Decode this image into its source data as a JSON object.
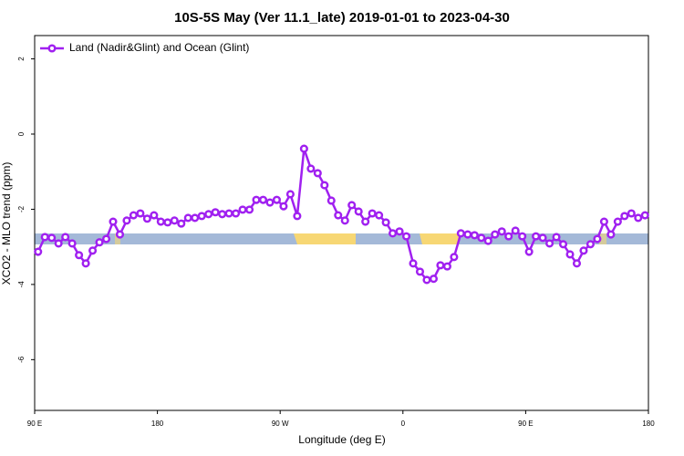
{
  "chart_data": {
    "type": "line",
    "title": "10S-5S May (Ver 11.1_late)   2019-01-01 to 2023-04-30",
    "x_label": "Longitude (deg E)",
    "y_label": "XCO2 - MLO trend (ppm)",
    "xlim": [
      90,
      540
    ],
    "ylim": [
      -7.35,
      2.62
    ],
    "xticks": [
      {
        "value": 90,
        "label": "90 E"
      },
      {
        "value": 180,
        "label": "180"
      },
      {
        "value": 270,
        "label": "90 W"
      },
      {
        "value": 360,
        "label": "0"
      },
      {
        "value": 450,
        "label": "90 E"
      },
      {
        "value": 540,
        "label": "180"
      }
    ],
    "yticks": [
      2,
      0,
      -2,
      -4,
      -6
    ],
    "legend": "top-left",
    "x": [
      92.5,
      97.5,
      102.5,
      107.5,
      112.5,
      117.5,
      122.5,
      127.5,
      132.5,
      137.5,
      142.5,
      147.5,
      152.5,
      157.5,
      162.5,
      167.5,
      172.5,
      177.5,
      182.5,
      187.5,
      192.5,
      197.5,
      202.5,
      207.5,
      212.5,
      217.5,
      222.5,
      227.5,
      232.5,
      237.5,
      242.5,
      247.5,
      252.5,
      257.5,
      262.5,
      267.5,
      272.5,
      277.5,
      282.5,
      287.5,
      292.5,
      297.5,
      302.5,
      307.5,
      312.5,
      317.5,
      322.5,
      327.5,
      332.5,
      337.5,
      342.5,
      347.5,
      352.5,
      357.5,
      362.5,
      367.5,
      372.5,
      377.5,
      382.5,
      387.5,
      392.5,
      397.5,
      402.5,
      407.5,
      412.5,
      417.5,
      422.5,
      427.5,
      432.5,
      437.5,
      442.5,
      447.5,
      452.5,
      457.5,
      462.5,
      467.5,
      472.5,
      477.5,
      482.5,
      487.5,
      492.5,
      497.5,
      502.5,
      507.5,
      512.5,
      517.5,
      522.5,
      527.5,
      532.5,
      537.5
    ],
    "series": [
      {
        "name": "Land (Nadir&Glint) and Ocean (Glint)",
        "color": "#a020f0",
        "values": [
          -3.13,
          -2.74,
          -2.76,
          -2.91,
          -2.74,
          -2.91,
          -3.22,
          -3.44,
          -3.1,
          -2.88,
          -2.79,
          -2.33,
          -2.67,
          -2.3,
          -2.16,
          -2.11,
          -2.25,
          -2.16,
          -2.33,
          -2.35,
          -2.3,
          -2.38,
          -2.23,
          -2.23,
          -2.18,
          -2.13,
          -2.08,
          -2.13,
          -2.11,
          -2.11,
          -2.01,
          -2.01,
          -1.75,
          -1.75,
          -1.82,
          -1.75,
          -1.92,
          -1.6,
          -2.18,
          -0.39,
          -0.92,
          -1.04,
          -1.36,
          -1.77,
          -2.16,
          -2.3,
          -1.89,
          -2.06,
          -2.33,
          -2.11,
          -2.16,
          -2.35,
          -2.64,
          -2.59,
          -2.72,
          -3.44,
          -3.66,
          -3.88,
          -3.85,
          -3.49,
          -3.52,
          -3.27,
          -2.64,
          -2.67,
          -2.69,
          -2.76,
          -2.84,
          -2.67,
          -2.59,
          -2.72,
          -2.57,
          -2.72,
          -3.13,
          -2.72,
          -2.76,
          -2.91,
          -2.74,
          -2.93,
          -3.2,
          -3.44,
          -3.1,
          -2.93,
          -2.79,
          -2.33,
          -2.67,
          -2.33,
          -2.18,
          -2.11,
          -2.23,
          -2.16
        ]
      }
    ]
  }
}
